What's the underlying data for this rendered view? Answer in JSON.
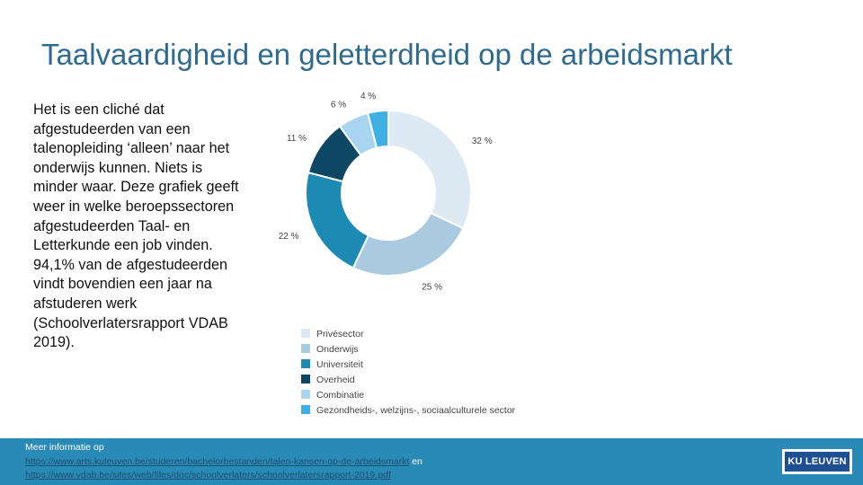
{
  "slide": {
    "title": "Taalvaardigheid en geletterdheid op de arbeidsmarkt",
    "body": "Het is een cliché dat afgestudeerden van een talenopleiding ‘alleen’ naar het onderwijs kunnen. Niets is minder waar. Deze grafiek geeft weer in welke beroepssectoren afgestudeerden Taal- en Letterkunde een job vinden. 94,1% van de afgestudeerden vindt bovendien een jaar na afstuderen werk (Schoolverlatersrapport VDAB 2019)."
  },
  "footer": {
    "intro": "Meer informatie op",
    "link1": "https://www.arts.kuleuven.be/studeren/bachelorbestanden/talen-kansen-op-de-arbeidsmarkt",
    "connector": " en",
    "link2": "https://www.vdab.be/sites/web/files/doc/schoolverlaters/schoolverlatersrapport-2019.pdf",
    "logo_text": "KU LEUVEN"
  },
  "chart_data": {
    "type": "pie",
    "categories": [
      "Privésector",
      "Onderwijs",
      "Universiteit",
      "Overheid",
      "Combinatie",
      "Gezondheids-, welzijns-, sociaalculturele sector"
    ],
    "values": [
      32,
      25,
      22,
      11,
      6,
      4
    ],
    "labels": [
      "32 %",
      "25 %",
      "22 %",
      "11 %",
      "6 %",
      "4 %"
    ],
    "colors": [
      "#dde9f3",
      "#a9cadf",
      "#1d8ab3",
      "#0e4763",
      "#a8d4ef",
      "#3fb0e4"
    ],
    "legend_position": "bottom-left",
    "donut": true
  }
}
